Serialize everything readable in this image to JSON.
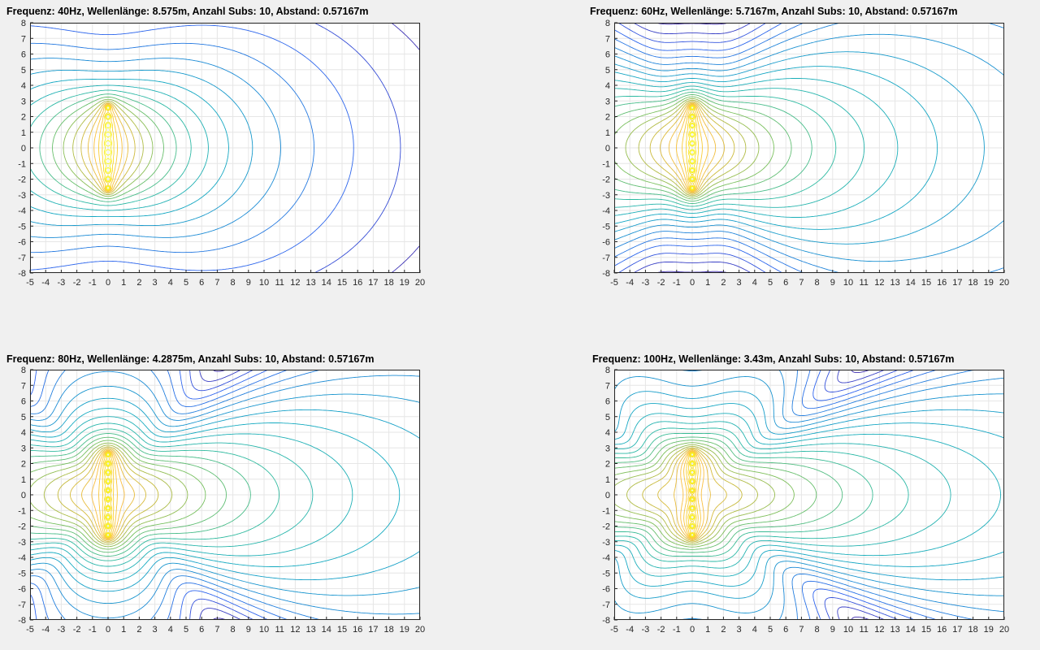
{
  "chart_data": [
    {
      "type": "contour",
      "title": "Frequenz: 40Hz,  Wellenlänge: 8.575m,  Anzahl Subs: 10,  Abstand: 0.57167m",
      "frequency_hz": 40,
      "wavelength_m": 8.575,
      "num_subs": 10,
      "spacing_m": 0.57167,
      "xlim": [
        -5,
        20
      ],
      "ylim": [
        -8,
        8
      ],
      "xticks": [
        "-5",
        "-4",
        "-3",
        "-2",
        "-1",
        "0",
        "1",
        "2",
        "3",
        "4",
        "5",
        "6",
        "7",
        "8",
        "9",
        "10",
        "11",
        "12",
        "13",
        "14",
        "15",
        "16",
        "17",
        "18",
        "19",
        "20"
      ],
      "yticks": [
        "8",
        "7",
        "6",
        "5",
        "4",
        "3",
        "2",
        "1",
        "0",
        "-1",
        "-2",
        "-3",
        "-4",
        "-5",
        "-6",
        "-7",
        "-8"
      ],
      "grid": true,
      "sources_x": 0,
      "sources_y": [
        -2.573,
        -1.998,
        -1.429,
        -0.858,
        -0.286,
        0.286,
        0.858,
        1.429,
        1.998,
        2.573
      ]
    },
    {
      "type": "contour",
      "title": "Frequenz: 60Hz,  Wellenlänge: 5.7167m,  Anzahl Subs: 10,  Abstand: 0.57167m",
      "frequency_hz": 60,
      "wavelength_m": 5.7167,
      "num_subs": 10,
      "spacing_m": 0.57167,
      "xlim": [
        -5,
        20
      ],
      "ylim": [
        -8,
        8
      ],
      "xticks": [
        "-5",
        "-4",
        "-3",
        "-2",
        "-1",
        "0",
        "1",
        "2",
        "3",
        "4",
        "5",
        "6",
        "7",
        "8",
        "9",
        "10",
        "11",
        "12",
        "13",
        "14",
        "15",
        "16",
        "17",
        "18",
        "19",
        "20"
      ],
      "yticks": [
        "8",
        "7",
        "6",
        "5",
        "4",
        "3",
        "2",
        "1",
        "0",
        "-1",
        "-2",
        "-3",
        "-4",
        "-5",
        "-6",
        "-7",
        "-8"
      ],
      "grid": true,
      "sources_x": 0,
      "sources_y": [
        -2.573,
        -1.998,
        -1.429,
        -0.858,
        -0.286,
        0.286,
        0.858,
        1.429,
        1.998,
        2.573
      ]
    },
    {
      "type": "contour",
      "title": "Frequenz: 80Hz,  Wellenlänge: 4.2875m,  Anzahl Subs: 10,  Abstand: 0.57167m",
      "frequency_hz": 80,
      "wavelength_m": 4.2875,
      "num_subs": 10,
      "spacing_m": 0.57167,
      "xlim": [
        -5,
        20
      ],
      "ylim": [
        -8,
        8
      ],
      "xticks": [
        "-5",
        "-4",
        "-3",
        "-2",
        "-1",
        "0",
        "1",
        "2",
        "3",
        "4",
        "5",
        "6",
        "7",
        "8",
        "9",
        "10",
        "11",
        "12",
        "13",
        "14",
        "15",
        "16",
        "17",
        "18",
        "19",
        "20"
      ],
      "yticks": [
        "8",
        "7",
        "6",
        "5",
        "4",
        "3",
        "2",
        "1",
        "0",
        "-1",
        "-2",
        "-3",
        "-4",
        "-5",
        "-6",
        "-7",
        "-8"
      ],
      "grid": true,
      "sources_x": 0,
      "sources_y": [
        -2.573,
        -1.998,
        -1.429,
        -0.858,
        -0.286,
        0.286,
        0.858,
        1.429,
        1.998,
        2.573
      ]
    },
    {
      "type": "contour",
      "title": "Frequenz: 100Hz,  Wellenlänge: 3.43m,  Anzahl Subs: 10,  Abstand: 0.57167m",
      "frequency_hz": 100,
      "wavelength_m": 3.43,
      "num_subs": 10,
      "spacing_m": 0.57167,
      "xlim": [
        -5,
        20
      ],
      "ylim": [
        -8,
        8
      ],
      "xticks": [
        "-5",
        "-4",
        "-3",
        "-2",
        "-1",
        "0",
        "1",
        "2",
        "3",
        "4",
        "5",
        "6",
        "7",
        "8",
        "9",
        "10",
        "11",
        "12",
        "13",
        "14",
        "15",
        "16",
        "17",
        "18",
        "19",
        "20"
      ],
      "yticks": [
        "8",
        "7",
        "6",
        "5",
        "4",
        "3",
        "2",
        "1",
        "0",
        "-1",
        "-2",
        "-3",
        "-4",
        "-5",
        "-6",
        "-7",
        "-8"
      ],
      "grid": true,
      "sources_x": 0,
      "sources_y": [
        -2.573,
        -1.998,
        -1.429,
        -0.858,
        -0.286,
        0.286,
        0.858,
        1.429,
        1.998,
        2.573
      ]
    }
  ],
  "colors": {
    "background": "#f0f0f0",
    "axes_background": "#ffffff",
    "grid": "#e6e6e6",
    "axes": "#262626",
    "colormap": [
      "#3e26a8",
      "#2e61ef",
      "#1b8ad5",
      "#13a9c1",
      "#2ebaa0",
      "#74bf5d",
      "#c4b93a",
      "#f9be3e",
      "#f9d62b",
      "#f9fb15"
    ]
  }
}
